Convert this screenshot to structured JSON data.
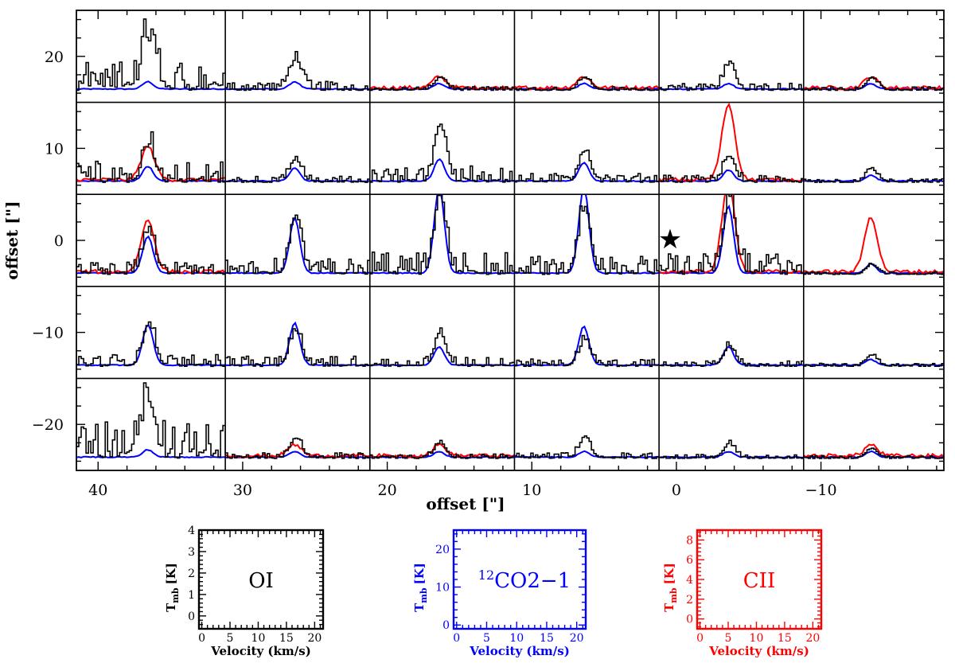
{
  "chart_data": {
    "type": "line",
    "title": "",
    "main_grid": {
      "xlabel": "offset [\"]",
      "ylabel": "offset [\"]",
      "xlim": [
        41.5,
        -18.5
      ],
      "ylim": [
        -25,
        25
      ],
      "x_ticks": [
        40,
        30,
        20,
        10,
        0,
        -10
      ],
      "x_tick_labels": [
        "40",
        "30",
        "20",
        "10",
        "0",
        "−10"
      ],
      "y_ticks": [
        20,
        10,
        0,
        -10,
        -20
      ],
      "y_tick_labels": [
        "20",
        "10",
        "0",
        "−10",
        "−20"
      ],
      "column_centers": [
        36,
        26,
        16,
        6,
        -4,
        -14
      ],
      "row_centers": [
        20,
        10,
        0,
        -10,
        -20
      ],
      "star_marker": {
        "x": 0,
        "y": 0,
        "symbol": "★"
      },
      "line_colors": {
        "OI": "#000000",
        "CO": "#0000ff",
        "CII": "#ff0000"
      },
      "cells": [
        {
          "row": 0,
          "col": 0,
          "oi_peak": 3.5,
          "co_peak": 0.08,
          "cii_peak": null
        },
        {
          "row": 0,
          "col": 1,
          "oi_peak": 2.2,
          "co_peak": 0.08,
          "cii_peak": null
        },
        {
          "row": 0,
          "col": 2,
          "oi_peak": 0.9,
          "co_peak": 0.06,
          "cii_peak": 0.12
        },
        {
          "row": 0,
          "col": 3,
          "oi_peak": 0.9,
          "co_peak": 0.06,
          "cii_peak": 0.12
        },
        {
          "row": 0,
          "col": 4,
          "oi_peak": 1.8,
          "co_peak": 0.06,
          "cii_peak": null
        },
        {
          "row": 0,
          "col": 5,
          "oi_peak": 0.9,
          "co_peak": 0.06,
          "cii_peak": 0.12
        },
        {
          "row": 1,
          "col": 0,
          "oi_peak": 2.5,
          "co_peak": 0.16,
          "cii_peak": 0.36
        },
        {
          "row": 1,
          "col": 1,
          "oi_peak": 1.6,
          "co_peak": 0.14,
          "cii_peak": null
        },
        {
          "row": 1,
          "col": 2,
          "oi_peak": 4.0,
          "co_peak": 0.24,
          "cii_peak": null
        },
        {
          "row": 1,
          "col": 3,
          "oi_peak": 2.2,
          "co_peak": 0.2,
          "cii_peak": null
        },
        {
          "row": 1,
          "col": 4,
          "oi_peak": 1.8,
          "co_peak": 0.12,
          "cii_peak": 0.82
        },
        {
          "row": 1,
          "col": 5,
          "oi_peak": 0.9,
          "co_peak": 0.06,
          "cii_peak": null
        },
        {
          "row": 2,
          "col": 0,
          "oi_peak": 3.0,
          "co_peak": 0.4,
          "cii_peak": 0.56
        },
        {
          "row": 2,
          "col": 1,
          "oi_peak": 4.0,
          "co_peak": 0.6,
          "cii_peak": null
        },
        {
          "row": 2,
          "col": 2,
          "oi_peak": 5.5,
          "co_peak": 0.93,
          "cii_peak": null
        },
        {
          "row": 2,
          "col": 3,
          "oi_peak": 4.6,
          "co_peak": 0.93,
          "cii_peak": null
        },
        {
          "row": 2,
          "col": 4,
          "oi_peak": 5.5,
          "co_peak": 0.73,
          "cii_peak": 0.95
        },
        {
          "row": 2,
          "col": 5,
          "oi_peak": 0.7,
          "co_peak": 0.1,
          "cii_peak": 0.6
        },
        {
          "row": 3,
          "col": 0,
          "oi_peak": 3.0,
          "co_peak": 0.44,
          "cii_peak": null
        },
        {
          "row": 3,
          "col": 1,
          "oi_peak": 2.5,
          "co_peak": 0.46,
          "cii_peak": null
        },
        {
          "row": 3,
          "col": 2,
          "oi_peak": 2.2,
          "co_peak": 0.2,
          "cii_peak": null
        },
        {
          "row": 3,
          "col": 3,
          "oi_peak": 1.8,
          "co_peak": 0.42,
          "cii_peak": null
        },
        {
          "row": 3,
          "col": 4,
          "oi_peak": 1.4,
          "co_peak": 0.2,
          "cii_peak": null
        },
        {
          "row": 3,
          "col": 5,
          "oi_peak": 0.8,
          "co_peak": 0.06,
          "cii_peak": null
        },
        {
          "row": 4,
          "col": 0,
          "oi_peak": 4.0,
          "co_peak": 0.08,
          "cii_peak": null
        },
        {
          "row": 4,
          "col": 1,
          "oi_peak": 1.4,
          "co_peak": 0.06,
          "cii_peak": 0.12
        },
        {
          "row": 4,
          "col": 2,
          "oi_peak": 1.1,
          "co_peak": 0.06,
          "cii_peak": 0.12
        },
        {
          "row": 4,
          "col": 3,
          "oi_peak": 1.4,
          "co_peak": 0.06,
          "cii_peak": null
        },
        {
          "row": 4,
          "col": 4,
          "oi_peak": 1.0,
          "co_peak": 0.06,
          "cii_peak": null
        },
        {
          "row": 4,
          "col": 5,
          "oi_peak": 0.7,
          "co_peak": 0.06,
          "cii_peak": 0.12
        }
      ]
    },
    "legend_panels": [
      {
        "name": "OI",
        "label": "OI",
        "color": "#000000",
        "xlabel": "Velocity (km/s)",
        "ylabel_main": "T",
        "ylabel_sub": "mb",
        "ylabel_unit": "[K]",
        "xlim": [
          -0.5,
          21.5
        ],
        "x_ticks": [
          0,
          5,
          10,
          15,
          20
        ],
        "x_tick_labels": [
          "0",
          "5",
          "10",
          "15",
          "20"
        ],
        "ylim": [
          -0.6,
          4
        ],
        "y_ticks": [
          0,
          1,
          2,
          3,
          4
        ],
        "y_tick_labels": [
          "0",
          "1",
          "2",
          "3",
          "4"
        ]
      },
      {
        "name": "12CO",
        "label_sup": "12",
        "label": "CO2−1",
        "color": "#0000ff",
        "xlabel": "Velocity (km/s)",
        "ylabel_main": "T",
        "ylabel_sub": "mb",
        "ylabel_unit": "[K]",
        "xlim": [
          -0.5,
          21.5
        ],
        "x_ticks": [
          0,
          5,
          10,
          15,
          20
        ],
        "x_tick_labels": [
          "0",
          "5",
          "10",
          "15",
          "20"
        ],
        "ylim": [
          -1,
          25
        ],
        "y_ticks": [
          0,
          10,
          20
        ],
        "y_tick_labels": [
          "0",
          "10",
          "20"
        ]
      },
      {
        "name": "CII",
        "label": "CII",
        "color": "#ff0000",
        "xlabel": "Velocity (km/s)",
        "ylabel_main": "T",
        "ylabel_sub": "mb",
        "ylabel_unit": "[K]",
        "xlim": [
          -0.5,
          21.5
        ],
        "x_ticks": [
          0,
          5,
          10,
          15,
          20
        ],
        "x_tick_labels": [
          "0",
          "5",
          "10",
          "15",
          "20"
        ],
        "ylim": [
          -1,
          9
        ],
        "y_ticks": [
          0,
          2,
          4,
          6,
          8
        ],
        "y_tick_labels": [
          "0",
          "2",
          "4",
          "6",
          "8"
        ]
      }
    ]
  }
}
